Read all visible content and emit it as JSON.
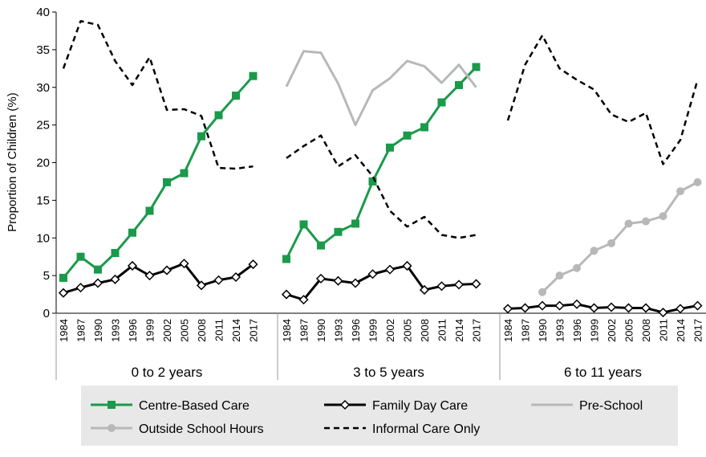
{
  "chart_data": {
    "type": "line",
    "title": "",
    "ylabel": "Proportion of Children (%)",
    "ylim": [
      0,
      40
    ],
    "yticks": [
      0,
      5,
      10,
      15,
      20,
      25,
      30,
      35,
      40
    ],
    "grid": false,
    "legend_position": "bottom",
    "colors": {
      "centre_based": "#1a9a4a",
      "family_day": "#000000",
      "pre_school": "#b8b8b8",
      "outside_school": "#b8b8b8",
      "informal": "#000000",
      "legend_bg": "#e8e8e8"
    },
    "groups": [
      {
        "label": "0 to 2 years",
        "years": [
          "1984",
          "1987",
          "1990",
          "1993",
          "1996",
          "1999",
          "2002",
          "2005",
          "2008",
          "2011",
          "2014",
          "2017"
        ],
        "series": [
          {
            "key": "centre_based",
            "values": [
              4.7,
              7.5,
              5.8,
              8.0,
              10.7,
              13.6,
              17.4,
              18.6,
              23.5,
              26.3,
              28.9,
              31.5
            ]
          },
          {
            "key": "family_day",
            "values": [
              2.7,
              3.4,
              4.0,
              4.5,
              6.3,
              5.0,
              5.7,
              6.6,
              3.7,
              4.4,
              4.8,
              6.5
            ]
          },
          {
            "key": "informal",
            "values": [
              32.5,
              38.8,
              38.3,
              33.5,
              30.3,
              34.0,
              27.0,
              27.1,
              26.2,
              19.3,
              19.2,
              19.5
            ]
          }
        ]
      },
      {
        "label": "3 to 5 years",
        "years": [
          "1984",
          "1987",
          "1990",
          "1993",
          "1996",
          "1999",
          "2002",
          "2005",
          "2008",
          "2011",
          "2014",
          "2017"
        ],
        "series": [
          {
            "key": "centre_based",
            "values": [
              7.2,
              11.8,
              9.0,
              10.8,
              11.9,
              17.5,
              22.0,
              23.6,
              24.7,
              28.0,
              30.3,
              32.7
            ]
          },
          {
            "key": "family_day",
            "values": [
              2.5,
              1.8,
              4.6,
              4.3,
              4.0,
              5.2,
              5.8,
              6.3,
              3.1,
              3.6,
              3.8,
              3.9
            ]
          },
          {
            "key": "pre_school",
            "values": [
              30.1,
              34.8,
              34.6,
              30.5,
              25.0,
              29.6,
              31.2,
              33.5,
              32.8,
              30.6,
              33.0,
              30.0
            ]
          },
          {
            "key": "informal",
            "values": [
              20.6,
              22.2,
              23.6,
              19.5,
              21.0,
              18.2,
              13.6,
              11.5,
              12.8,
              10.4,
              10.0,
              10.4
            ]
          }
        ]
      },
      {
        "label": "6 to 11 years",
        "years": [
          "1984",
          "1987",
          "1990",
          "1993",
          "1996",
          "1999",
          "2002",
          "2005",
          "2008",
          "2011",
          "2014",
          "2017"
        ],
        "series": [
          {
            "key": "family_day",
            "values": [
              0.6,
              0.7,
              1.0,
              1.0,
              1.2,
              0.7,
              0.8,
              0.7,
              0.7,
              0.1,
              0.6,
              1.0
            ]
          },
          {
            "key": "outside_school",
            "values": [
              null,
              null,
              2.8,
              5.0,
              6.0,
              8.3,
              9.3,
              11.9,
              12.2,
              12.9,
              16.2,
              17.4
            ]
          },
          {
            "key": "informal",
            "values": [
              25.6,
              33.0,
              36.9,
              32.5,
              31.0,
              29.7,
              26.4,
              25.4,
              26.6,
              19.8,
              23.0,
              31.0
            ]
          }
        ]
      }
    ],
    "legend": [
      {
        "key": "centre_based",
        "label": "Centre-Based Care"
      },
      {
        "key": "family_day",
        "label": "Family Day Care"
      },
      {
        "key": "pre_school",
        "label": "Pre-School"
      },
      {
        "key": "outside_school",
        "label": "Outside School Hours"
      },
      {
        "key": "informal",
        "label": "Informal Care Only"
      }
    ]
  }
}
